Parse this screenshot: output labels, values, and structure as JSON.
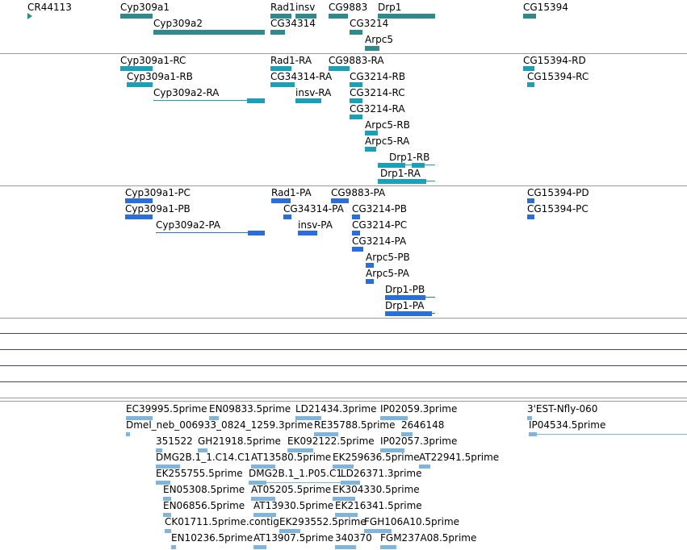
{
  "tracks": [
    {
      "name": "genes-track",
      "color": "#2e8b8b",
      "labels": [
        "CR44113",
        "Cyp309a1",
        "Cyp309a2",
        "Rad1",
        "insv",
        "CG34314",
        "CG9883",
        "CG3214",
        "Drp1",
        "Arpc5",
        "CG15394"
      ]
    },
    {
      "name": "transcripts-track",
      "color": "#1ba0b8",
      "labels": [
        "Cyp309a1-RC",
        "Cyp309a1-RB",
        "Cyp309a2-RA",
        "Rad1-RA",
        "CG34314-RA",
        "insv-RA",
        "CG9883-RA",
        "CG3214-RB",
        "CG3214-RC",
        "CG3214-RA",
        "Arpc5-RB",
        "Arpc5-RA",
        "Drp1-RB",
        "Drp1-RA",
        "CG15394-RD",
        "CG15394-RC"
      ]
    },
    {
      "name": "proteins-track",
      "color": "#2b6fd6",
      "labels": [
        "Cyp309a1-PC",
        "Cyp309a1-PB",
        "Cyp309a2-PA",
        "Rad1-PA",
        "CG34314-PA",
        "insv-PA",
        "CG9883-PA",
        "CG3214-PB",
        "CG3214-PC",
        "CG3214-PA",
        "Arpc5-PB",
        "Arpc5-PA",
        "Drp1-PB",
        "Drp1-PA",
        "CG15394-PD",
        "CG15394-PC"
      ]
    },
    {
      "name": "est-track",
      "color": "#7fb4dc",
      "labels": [
        "EC39995.5prime",
        "EN09833.5prime",
        "LD21434.3prime",
        "IP02059.3prime",
        "3'EST-Nfly-060",
        "Dmel_neb_006933_0824_1259.3prime",
        "RE35788.5prime",
        "2646148",
        "IP04534.5prime",
        "351522",
        "GH21918.5prime",
        "EK092122.5prime",
        "IP02057.3prime",
        "DMG2B.1_1.C14.C1",
        "AT13580.5prime",
        "EK259636.5prime",
        "AT22941.5prime",
        "EK255755.5prime",
        "DMG2B.1_1.P05.C1",
        "LD26371.3prime",
        "EN05308.5prime",
        "AT05205.5prime",
        "EK304330.5prime",
        "EN06856.5prime",
        "AT13930.5prime",
        "EK216341.5prime",
        "CK01711.5prime.contig",
        "EK293552.5prime",
        "FGH106A10.5prime",
        "EN10236.5prime",
        "AT13907.5prime",
        "340370",
        "FGM237A08.5prime"
      ]
    }
  ]
}
